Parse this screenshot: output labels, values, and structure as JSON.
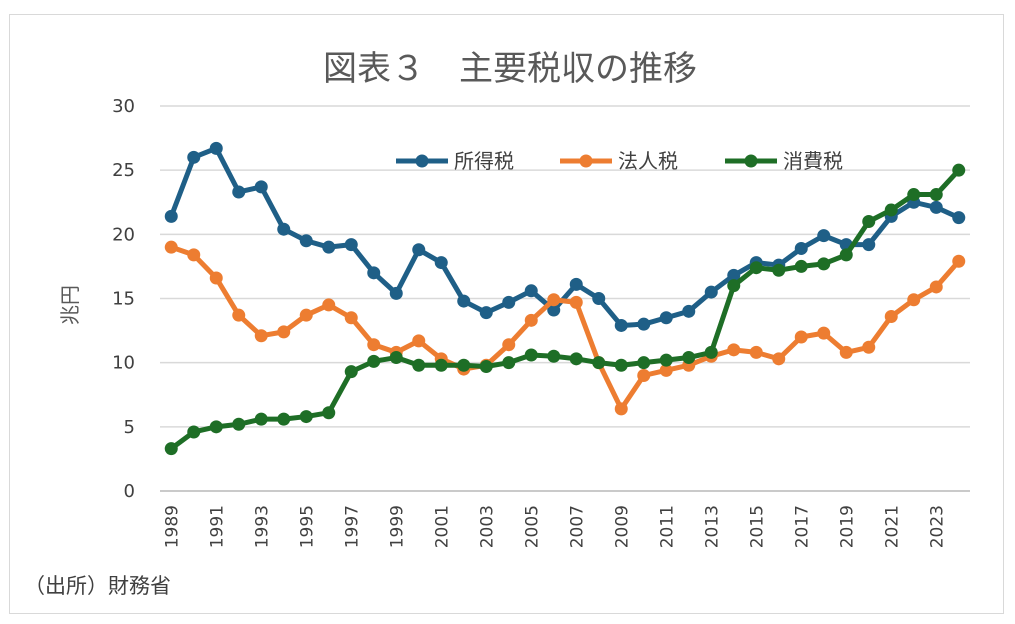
{
  "chart_data": {
    "type": "line",
    "title": "図表３　主要税収の推移",
    "ylabel": "兆円",
    "source": "（出所）財務省",
    "ylim": [
      0,
      30
    ],
    "yticks": [
      "0",
      "5",
      "10",
      "15",
      "20",
      "25",
      "30"
    ],
    "x": [
      1989,
      1990,
      1991,
      1992,
      1993,
      1994,
      1995,
      1996,
      1997,
      1998,
      1999,
      2000,
      2001,
      2002,
      2003,
      2004,
      2005,
      2006,
      2007,
      2008,
      2009,
      2010,
      2011,
      2012,
      2013,
      2014,
      2015,
      2016,
      2017,
      2018,
      2019,
      2020,
      2021,
      2022,
      2023,
      2024
    ],
    "xtick_labels": [
      "1989",
      "1991",
      "1993",
      "1995",
      "1997",
      "1999",
      "2001",
      "2003",
      "2005",
      "2007",
      "2009",
      "2011",
      "2013",
      "2015",
      "2017",
      "2019",
      "2021",
      "2023"
    ],
    "grid": true,
    "legend_position": "top-right",
    "series": [
      {
        "name": "所得税",
        "color": "#1f5f87",
        "values": [
          21.4,
          26.0,
          26.7,
          23.3,
          23.7,
          20.4,
          19.5,
          19.0,
          19.2,
          17.0,
          15.4,
          18.8,
          17.8,
          14.8,
          13.9,
          14.7,
          15.6,
          14.1,
          16.1,
          15.0,
          12.9,
          13.0,
          13.5,
          14.0,
          15.5,
          16.8,
          17.8,
          17.6,
          18.9,
          19.9,
          19.2,
          19.2,
          21.4,
          22.5,
          22.1,
          21.3
        ]
      },
      {
        "name": "法人税",
        "color": "#ed7d31",
        "values": [
          19.0,
          18.4,
          16.6,
          13.7,
          12.1,
          12.4,
          13.7,
          14.5,
          13.5,
          11.4,
          10.8,
          11.7,
          10.3,
          9.5,
          9.8,
          11.4,
          13.3,
          14.9,
          14.7,
          10.0,
          6.4,
          9.0,
          9.4,
          9.8,
          10.5,
          11.0,
          10.8,
          10.3,
          12.0,
          12.3,
          10.8,
          11.2,
          13.6,
          14.9,
          15.9,
          17.9
        ]
      },
      {
        "name": "消費税",
        "color": "#1e6e26",
        "values": [
          3.3,
          4.6,
          5.0,
          5.2,
          5.6,
          5.6,
          5.8,
          6.1,
          9.3,
          10.1,
          10.4,
          9.8,
          9.8,
          9.8,
          9.7,
          10.0,
          10.6,
          10.5,
          10.3,
          10.0,
          9.8,
          10.0,
          10.2,
          10.4,
          10.8,
          16.0,
          17.4,
          17.2,
          17.5,
          17.7,
          18.4,
          21.0,
          21.9,
          23.1,
          23.1,
          25.0
        ]
      }
    ]
  }
}
